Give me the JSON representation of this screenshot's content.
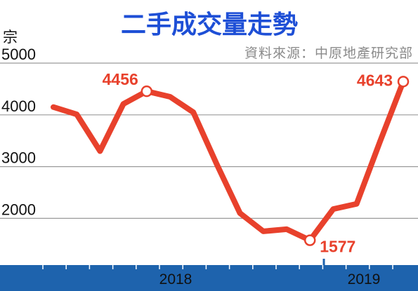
{
  "chart_data": {
    "type": "line",
    "title": "二手成交量走勢",
    "source": "資料來源：中原地產研究部",
    "ylabel": "宗",
    "ylim": [
      1200,
      5000
    ],
    "yticks": [
      2000,
      3000,
      4000,
      5000
    ],
    "xtick_labels": [
      "2018",
      "2019"
    ],
    "grid": true,
    "colors": {
      "line": "#e8412c",
      "axis_bar": "#1e63ad",
      "grid": "#9a9a9a",
      "title": "#1e4fd6"
    },
    "series": [
      {
        "values": [
          4150,
          4010,
          3300,
          4210,
          4456,
          4350,
          4050,
          3050,
          2100,
          1750,
          1790,
          1577,
          2180,
          2280,
          3480,
          4643
        ]
      }
    ],
    "annotations": [
      {
        "index": 4,
        "text": "4456",
        "position": "above-left"
      },
      {
        "index": 11,
        "text": "1577",
        "position": "right"
      },
      {
        "index": 15,
        "text": "4643",
        "position": "left"
      }
    ]
  }
}
